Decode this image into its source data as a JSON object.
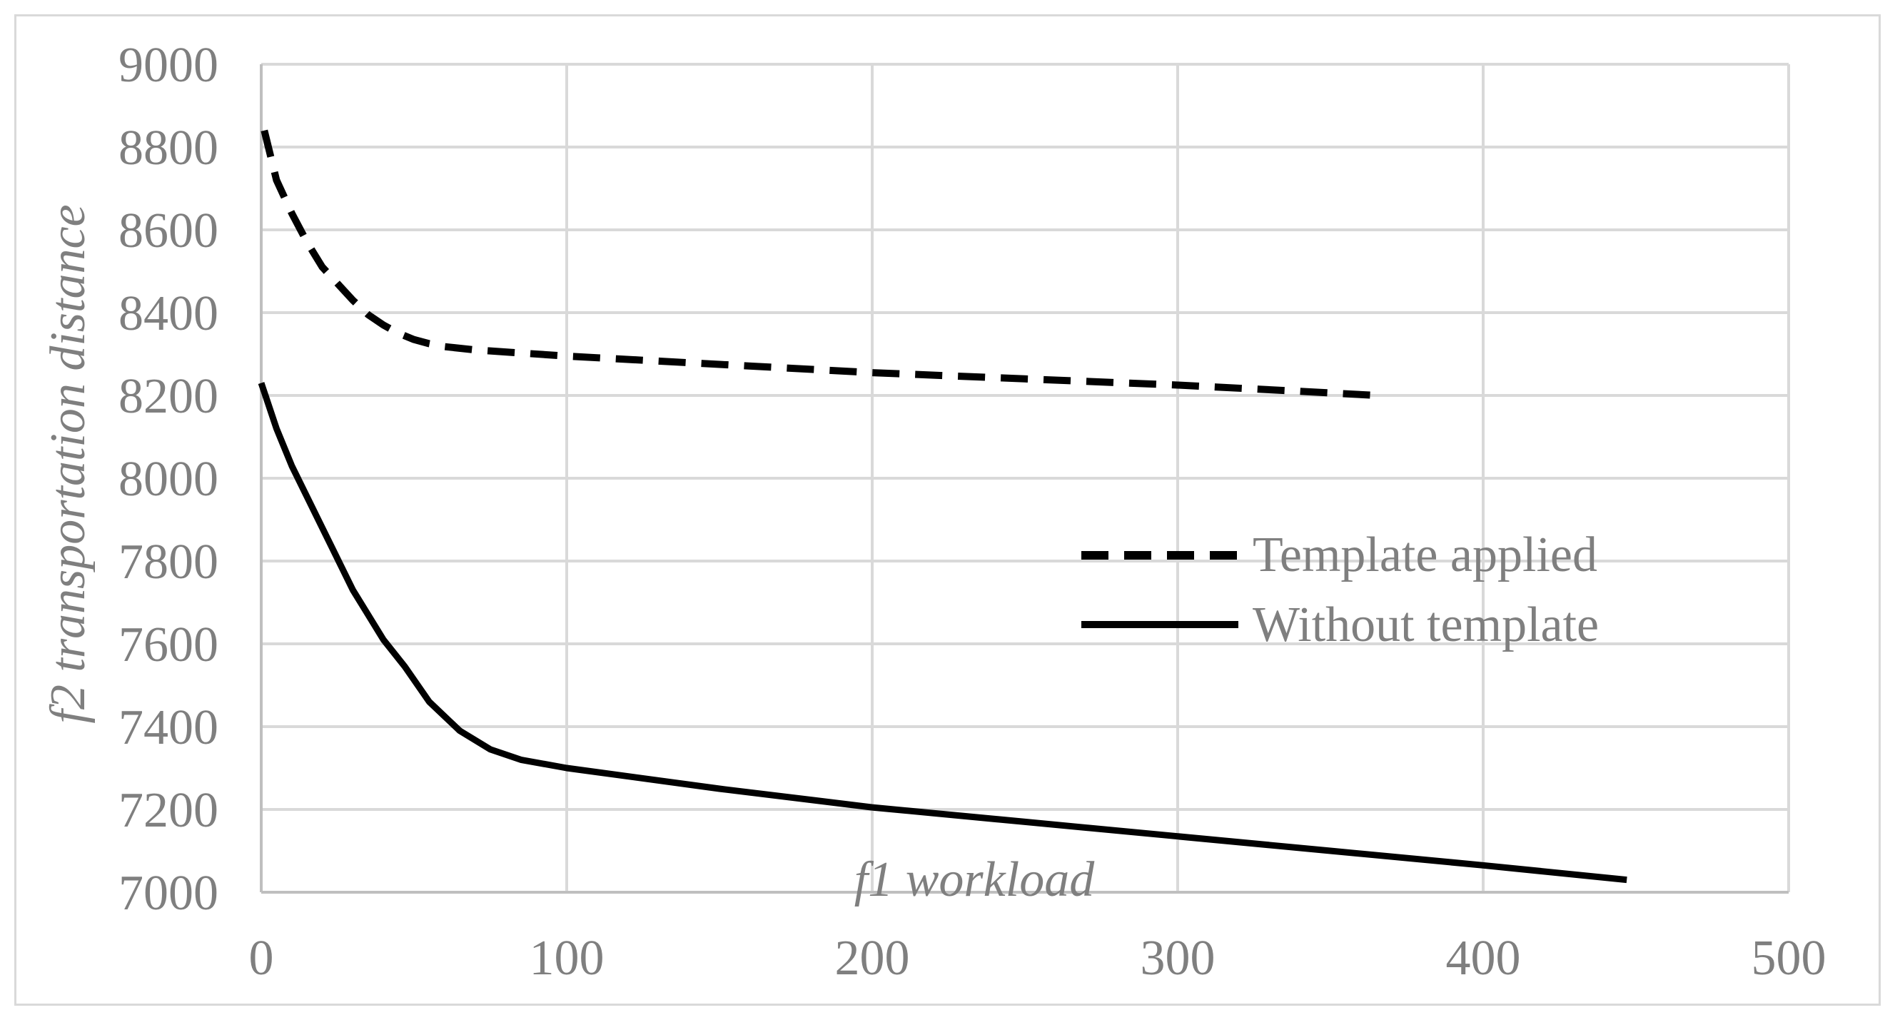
{
  "chart_data": {
    "type": "line",
    "title": "",
    "xlabel": "f1 workload",
    "ylabel": "f2 transportation distance",
    "xlim": [
      0,
      500
    ],
    "ylim": [
      7000,
      9000
    ],
    "xticks": [
      0,
      100,
      200,
      300,
      400,
      500
    ],
    "yticks": [
      7000,
      7200,
      7400,
      7600,
      7800,
      8000,
      8200,
      8400,
      8600,
      8800,
      9000
    ],
    "xtick_labels": [
      "0",
      "100",
      "200",
      "300",
      "400",
      "500"
    ],
    "ytick_labels": [
      "7000",
      "7200",
      "7400",
      "7600",
      "7800",
      "8000",
      "8200",
      "8400",
      "8600",
      "8800",
      "9000"
    ],
    "grid": true,
    "legend_position": "center-right",
    "series": [
      {
        "name": "Template applied",
        "style": "dashed",
        "color": "#000000",
        "x": [
          1,
          5,
          10,
          15,
          20,
          25,
          30,
          35,
          40,
          45,
          50,
          55,
          60,
          70,
          80,
          100,
          150,
          200,
          250,
          300,
          340,
          365
        ],
        "y": [
          8840,
          8720,
          8640,
          8570,
          8510,
          8470,
          8430,
          8395,
          8370,
          8350,
          8335,
          8325,
          8318,
          8310,
          8305,
          8295,
          8275,
          8255,
          8240,
          8225,
          8210,
          8200
        ]
      },
      {
        "name": "Without template",
        "style": "solid",
        "color": "#000000",
        "x": [
          0,
          5,
          10,
          20,
          30,
          40,
          47,
          55,
          65,
          75,
          85,
          100,
          150,
          200,
          250,
          300,
          350,
          400,
          447
        ],
        "y": [
          8230,
          8120,
          8030,
          7880,
          7730,
          7610,
          7545,
          7460,
          7390,
          7345,
          7320,
          7300,
          7250,
          7205,
          7170,
          7135,
          7100,
          7065,
          7030
        ]
      }
    ]
  }
}
